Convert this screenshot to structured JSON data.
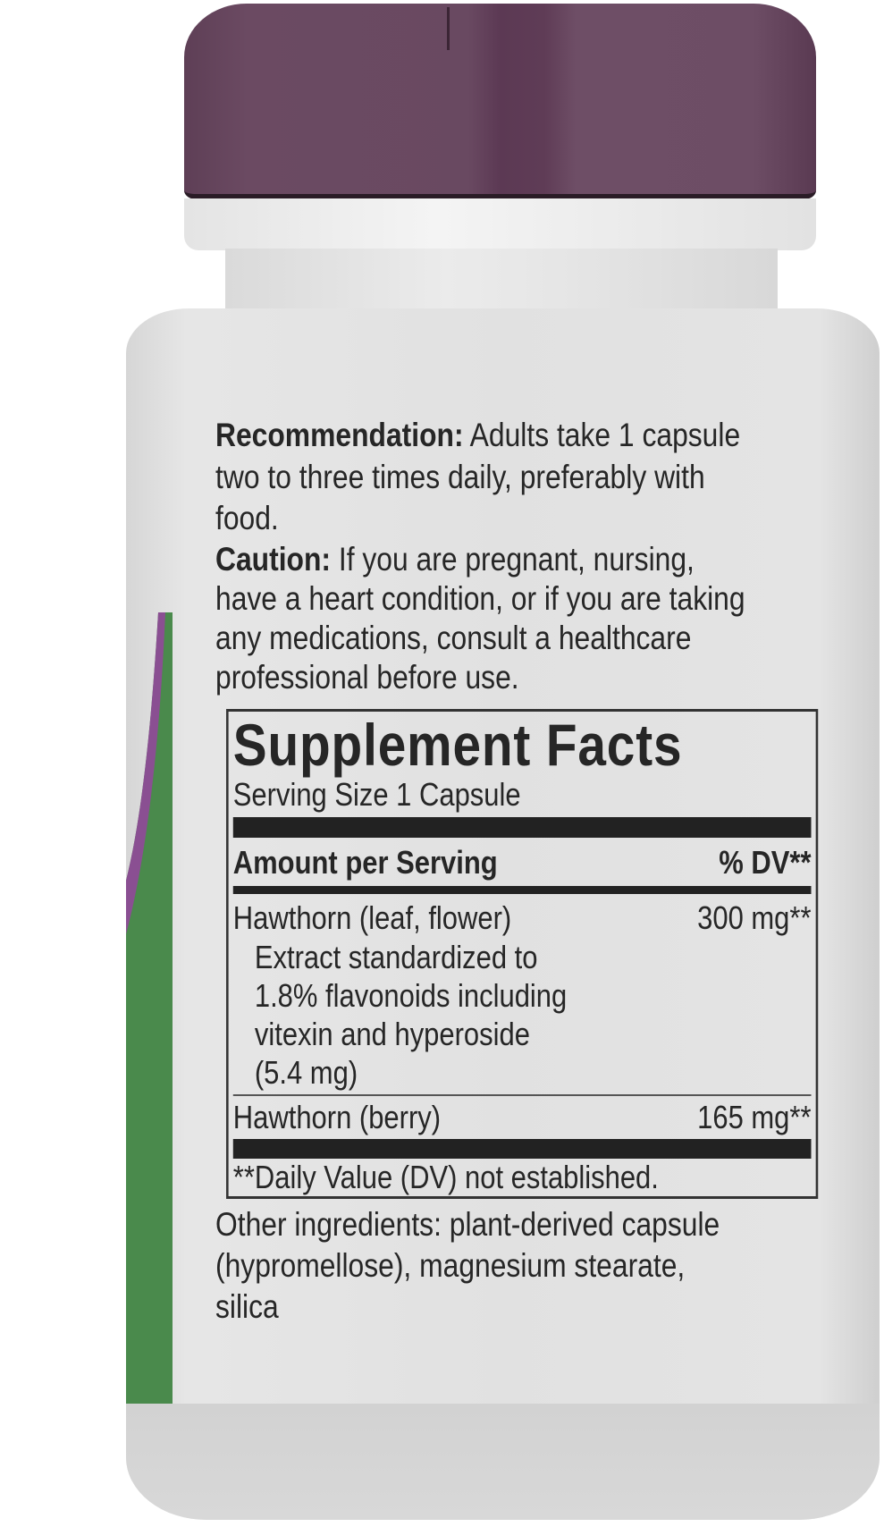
{
  "colors": {
    "cap": "#694961",
    "bottle": "#e2e2e2",
    "stripe_green": "#4a8a4c",
    "stripe_purple": "#8a4f92",
    "text": "#262626"
  },
  "recommendation": {
    "label": "Recommendation:",
    "lines": [
      " Adults take 1 capsule",
      "two to three times daily, preferably with",
      "food."
    ]
  },
  "caution": {
    "label": "Caution:",
    "lines": [
      " If you are pregnant, nursing,",
      "have a heart condition, or if you are taking",
      "any medications, consult a healthcare",
      "professional before use."
    ]
  },
  "supplement_facts": {
    "title": "Supplement Facts",
    "serving_size": "Serving Size 1 Capsule",
    "header_left": "Amount per Serving",
    "header_right": "% DV**",
    "rows": [
      {
        "name": "Hawthorn (leaf, flower)",
        "amount": "300 mg**",
        "details": [
          "Extract standardized to",
          "1.8% flavonoids including",
          "vitexin and hyperoside",
          "(5.4 mg)"
        ]
      },
      {
        "name": "Hawthorn (berry)",
        "amount": "165 mg**"
      }
    ],
    "footnote": "**Daily Value (DV) not established."
  },
  "other_ingredients": [
    "Other ingredients: plant-derived capsule",
    "(hypromellose), magnesium stearate,",
    "silica"
  ]
}
